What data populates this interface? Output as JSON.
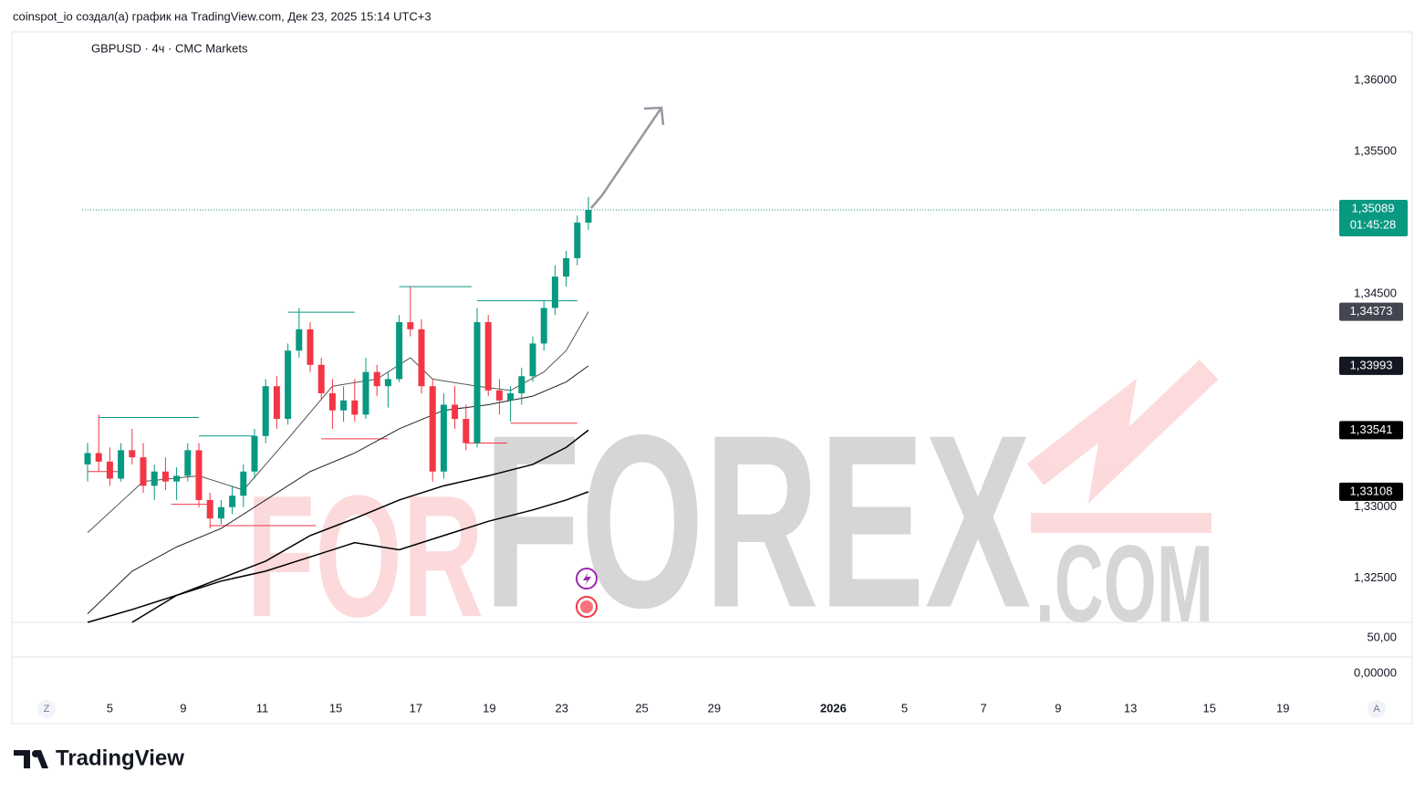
{
  "chart_data": {
    "type": "candlestick",
    "header": "coinspot_io создал(а) график на TradingView.com, Дек 23, 2025 15:14 UTC+3",
    "title": "GBPUSD · 4ч · CMC Markets",
    "logo": "TradingView",
    "watermark": [
      "FOR",
      "FOREX",
      ".COM"
    ],
    "scale_buttons": [
      "Z",
      "A"
    ],
    "up_color": "#089981",
    "down_color": "#f23645",
    "open": [
      1.333,
      1.3338,
      1.3332,
      1.332,
      1.334,
      1.3335,
      1.3315,
      1.3325,
      1.3318,
      1.3322,
      1.334,
      1.3305,
      1.3292,
      1.33,
      1.3308,
      1.3325,
      1.335,
      1.3385,
      1.3362,
      1.341,
      1.3425,
      1.34,
      1.338,
      1.3368,
      1.3375,
      1.3365,
      1.3395,
      1.3385,
      1.339,
      1.343,
      1.3425,
      1.3385,
      1.3325,
      1.3372,
      1.3362,
      1.3345,
      1.343,
      1.3382,
      1.3375,
      1.338,
      1.3392,
      1.3415,
      1.344,
      1.3462,
      1.3475,
      1.35
    ],
    "high": [
      1.3345,
      1.3365,
      1.3342,
      1.3345,
      1.3355,
      1.3345,
      1.333,
      1.3335,
      1.3328,
      1.3345,
      1.3345,
      1.331,
      1.3305,
      1.3315,
      1.333,
      1.3355,
      1.339,
      1.3392,
      1.3415,
      1.344,
      1.343,
      1.3405,
      1.339,
      1.3385,
      1.339,
      1.3405,
      1.34,
      1.3395,
      1.3435,
      1.3455,
      1.3432,
      1.339,
      1.338,
      1.3385,
      1.3372,
      1.344,
      1.3435,
      1.339,
      1.3385,
      1.3398,
      1.342,
      1.3445,
      1.347,
      1.348,
      1.3505,
      1.3518
    ],
    "low": [
      1.3318,
      1.3325,
      1.3315,
      1.3318,
      1.333,
      1.331,
      1.3305,
      1.3312,
      1.3305,
      1.3318,
      1.33,
      1.3285,
      1.3288,
      1.3295,
      1.33,
      1.332,
      1.3345,
      1.3355,
      1.3358,
      1.3405,
      1.3395,
      1.3375,
      1.3355,
      1.336,
      1.336,
      1.3362,
      1.3378,
      1.337,
      1.3388,
      1.342,
      1.338,
      1.3318,
      1.332,
      1.3355,
      1.334,
      1.3342,
      1.3378,
      1.3365,
      1.336,
      1.3372,
      1.3388,
      1.341,
      1.3435,
      1.3455,
      1.347,
      1.3495
    ],
    "close": [
      1.3338,
      1.3332,
      1.332,
      1.334,
      1.3335,
      1.3315,
      1.3325,
      1.3318,
      1.3322,
      1.334,
      1.3305,
      1.3292,
      1.33,
      1.3308,
      1.3325,
      1.335,
      1.3385,
      1.3362,
      1.341,
      1.3425,
      1.34,
      1.338,
      1.3368,
      1.3375,
      1.3365,
      1.3395,
      1.3385,
      1.339,
      1.343,
      1.3425,
      1.3385,
      1.3325,
      1.3372,
      1.3362,
      1.3345,
      1.343,
      1.3382,
      1.3375,
      1.338,
      1.3392,
      1.3415,
      1.344,
      1.3462,
      1.3475,
      1.35,
      1.35089
    ],
    "series": [
      {
        "color": "#555555",
        "width": 1,
        "x": [
          0,
          5,
          10,
          14,
          18,
          22,
          26,
          29,
          31,
          35,
          38,
          41,
          43,
          45
        ],
        "values": [
          1.3282,
          1.3318,
          1.3322,
          1.3312,
          1.3348,
          1.3385,
          1.339,
          1.3405,
          1.339,
          1.3385,
          1.3382,
          1.3395,
          1.341,
          1.34373
        ]
      },
      {
        "color": "#222222",
        "width": 1,
        "x": [
          0,
          4,
          8,
          12,
          16,
          20,
          24,
          28,
          32,
          36,
          40,
          43,
          45
        ],
        "values": [
          1.3225,
          1.3255,
          1.3272,
          1.3285,
          1.3305,
          1.3325,
          1.3338,
          1.3355,
          1.3368,
          1.3372,
          1.3378,
          1.3388,
          1.33993
        ]
      },
      {
        "color": "#000000",
        "width": 1.5,
        "x": [
          4,
          8,
          12,
          16,
          20,
          24,
          28,
          32,
          36,
          40,
          43,
          45
        ],
        "values": [
          1.3219,
          1.3238,
          1.325,
          1.3262,
          1.328,
          1.3292,
          1.3305,
          1.3315,
          1.3322,
          1.333,
          1.3342,
          1.33541
        ]
      },
      {
        "color": "#000000",
        "width": 1.5,
        "x": [
          0,
          4,
          8,
          12,
          16,
          20,
          24,
          28,
          32,
          36,
          40,
          43,
          45
        ],
        "values": [
          1.3219,
          1.3228,
          1.3238,
          1.3248,
          1.3255,
          1.3265,
          1.3275,
          1.327,
          1.328,
          1.329,
          1.3298,
          1.3305,
          1.33108
        ]
      }
    ],
    "levels": [
      {
        "value": 1.3363,
        "from": 1,
        "to": 10,
        "color": "#089981"
      },
      {
        "value": 1.335,
        "from": 10,
        "to": 15,
        "color": "#089981"
      },
      {
        "value": 1.3437,
        "from": 18,
        "to": 24,
        "color": "#089981"
      },
      {
        "value": 1.3455,
        "from": 28,
        "to": 34.5,
        "color": "#089981"
      },
      {
        "value": 1.3445,
        "from": 35,
        "to": 44,
        "color": "#089981"
      },
      {
        "value": 1.3325,
        "from": 0,
        "to": 3,
        "color": "#f23645"
      },
      {
        "value": 1.3302,
        "from": 7.5,
        "to": 11,
        "color": "#f23645"
      },
      {
        "value": 1.3287,
        "from": 11,
        "to": 20.5,
        "color": "#f23645"
      },
      {
        "value": 1.3348,
        "from": 21,
        "to": 27,
        "color": "#f23645"
      },
      {
        "value": 1.3345,
        "from": 34,
        "to": 37.7,
        "color": "#f23645"
      },
      {
        "value": 1.3359,
        "from": 38,
        "to": 44,
        "color": "#f23645"
      }
    ],
    "ylim": [
      1.3219,
      1.3634
    ],
    "yticks": [
      {
        "value": 1.36,
        "label": "1,36000"
      },
      {
        "value": 1.355,
        "label": "1,35500"
      },
      {
        "value": 1.345,
        "label": "1,34500"
      },
      {
        "value": 1.33,
        "label": "1,33000"
      },
      {
        "value": 1.325,
        "label": "1,32500"
      }
    ],
    "last_price": {
      "value": 1.35089,
      "label": "1,35089",
      "countdown": "01:45:28",
      "color": "#089981"
    },
    "price_labels": [
      {
        "value": 1.34373,
        "label": "1,34373",
        "color": "#434651"
      },
      {
        "value": 1.33993,
        "label": "1,33993",
        "color": "#131722"
      },
      {
        "value": 1.33541,
        "label": "1,33541",
        "color": "#000000"
      },
      {
        "value": 1.33108,
        "label": "1,33108",
        "color": "#000000"
      }
    ],
    "y2lim": [
      -28.2,
      71.8
    ],
    "y2ticks": [
      {
        "value": 50,
        "label": "50,00"
      },
      {
        "value": 0,
        "label": "0,00000"
      }
    ],
    "xticks": [
      {
        "value": 2.0,
        "label": "5"
      },
      {
        "value": 8.6,
        "label": "9"
      },
      {
        "value": 15.7,
        "label": "11"
      },
      {
        "value": 22.3,
        "label": "15"
      },
      {
        "value": 29.5,
        "label": "17"
      },
      {
        "value": 36.1,
        "label": "19"
      },
      {
        "value": 42.6,
        "label": "23"
      },
      {
        "value": 49.8,
        "label": "25"
      },
      {
        "value": 56.3,
        "label": "29"
      },
      {
        "value": 67.0,
        "label": "2026"
      },
      {
        "value": 73.4,
        "label": "5"
      },
      {
        "value": 80.5,
        "label": "7"
      },
      {
        "value": 87.2,
        "label": "9"
      },
      {
        "value": 93.7,
        "label": "13"
      },
      {
        "value": 100.8,
        "label": "15"
      },
      {
        "value": 107.4,
        "label": "19"
      }
    ]
  }
}
